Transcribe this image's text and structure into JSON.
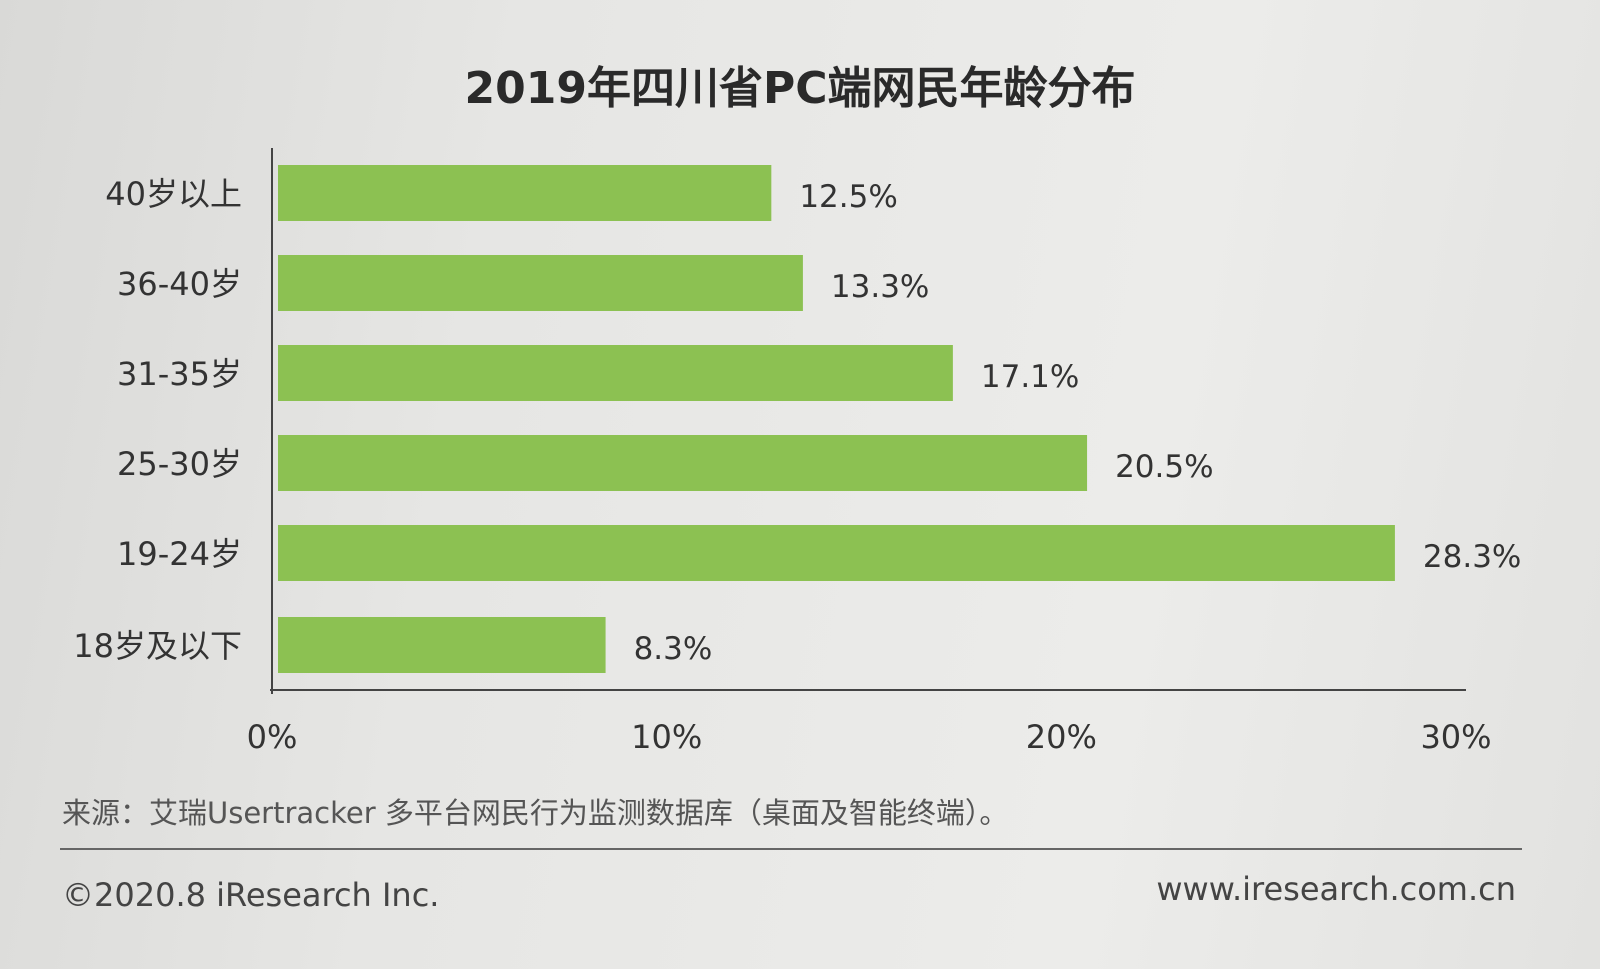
{
  "chart_data": {
    "type": "bar",
    "orientation": "horizontal",
    "title": "2019年四川省PC端网民年龄分布",
    "categories": [
      "40岁以上",
      "36-40岁",
      "31-35岁",
      "25-30岁",
      "19-24岁",
      "18岁及以下"
    ],
    "values": [
      12.5,
      13.3,
      17.1,
      20.5,
      28.3,
      8.3
    ],
    "data_labels": [
      "12.5%",
      "13.3%",
      "17.1%",
      "20.5%",
      "28.3%",
      "8.3%"
    ],
    "x_ticks": [
      "0%",
      "10%",
      "20%",
      "30%"
    ],
    "xlim": [
      0,
      30
    ],
    "xlabel": "",
    "ylabel": "",
    "grid": false,
    "bar_color": "#8cc152"
  },
  "source": "来源：艾瑞Usertracker 多平台网民行为监测数据库（桌面及智能终端）。",
  "copyright": "©2020.8  iResearch Inc.",
  "website": "www.iresearch.com.cn"
}
